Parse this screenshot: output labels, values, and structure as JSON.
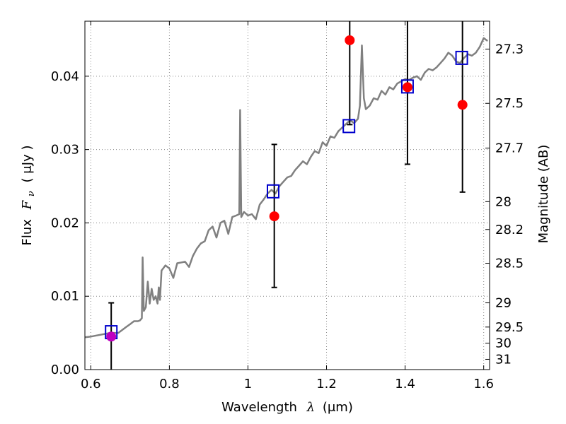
{
  "chart_data": {
    "type": "scatter",
    "title": "",
    "xlabel": {
      "prefix": "Wavelength",
      "symbol": "λ",
      "unit": "(μm)"
    },
    "ylabel": {
      "prefix": "Flux",
      "symbol": "F",
      "subscript": "ν",
      "unit": "( μJy )"
    },
    "y2label": "Magnitude (AB)",
    "xlim": [
      0.585,
      1.615
    ],
    "ylim": [
      0.0,
      0.0475
    ],
    "grid": true,
    "x_ticks": [
      0.6,
      0.8,
      1.0,
      1.2,
      1.4,
      1.6
    ],
    "x_tick_labels": [
      "0.6",
      "0.8",
      "1",
      "1.2",
      "1.4",
      "1.6"
    ],
    "y_ticks": [
      0.0,
      0.01,
      0.02,
      0.03,
      0.04
    ],
    "y_tick_labels": [
      "0.00",
      "0.01",
      "0.02",
      "0.03",
      "0.04"
    ],
    "y2_ticks": [
      {
        "label": "27.3",
        "flux": 0.0437
      },
      {
        "label": "27.5",
        "flux": 0.0363
      },
      {
        "label": "27.7",
        "flux": 0.0302
      },
      {
        "label": "28",
        "flux": 0.0229
      },
      {
        "label": "28.2",
        "flux": 0.0191
      },
      {
        "label": "28.5",
        "flux": 0.0145
      },
      {
        "label": "29",
        "flux": 0.0091
      },
      {
        "label": "29.5",
        "flux": 0.0058
      },
      {
        "label": "30",
        "flux": 0.0036
      },
      {
        "label": "31",
        "flux": 0.0014
      }
    ],
    "colors": {
      "model": "#808080",
      "observed": "#ff0000",
      "upper_limit": "#bf00bf",
      "synthetic": "#0000cc",
      "errorbar": "#000000",
      "grid": "#888888"
    },
    "series": [
      {
        "kind": "line",
        "points": [
          [
            0.585,
            0.0044
          ],
          [
            0.6,
            0.0045
          ],
          [
            0.62,
            0.0047
          ],
          [
            0.64,
            0.0049
          ],
          [
            0.65,
            0.005
          ],
          [
            0.67,
            0.005
          ],
          [
            0.69,
            0.0058
          ],
          [
            0.7,
            0.0062
          ],
          [
            0.71,
            0.0066
          ],
          [
            0.72,
            0.0066
          ],
          [
            0.725,
            0.0067
          ],
          [
            0.73,
            0.007
          ],
          [
            0.732,
            0.0153
          ],
          [
            0.735,
            0.008
          ],
          [
            0.74,
            0.0085
          ],
          [
            0.745,
            0.012
          ],
          [
            0.75,
            0.009
          ],
          [
            0.755,
            0.011
          ],
          [
            0.76,
            0.0095
          ],
          [
            0.765,
            0.01
          ],
          [
            0.77,
            0.009
          ],
          [
            0.773,
            0.0112
          ],
          [
            0.776,
            0.0095
          ],
          [
            0.78,
            0.0135
          ],
          [
            0.79,
            0.0142
          ],
          [
            0.8,
            0.0138
          ],
          [
            0.81,
            0.0125
          ],
          [
            0.82,
            0.0145
          ],
          [
            0.84,
            0.0147
          ],
          [
            0.85,
            0.014
          ],
          [
            0.86,
            0.0155
          ],
          [
            0.87,
            0.0165
          ],
          [
            0.88,
            0.0172
          ],
          [
            0.89,
            0.0175
          ],
          [
            0.9,
            0.019
          ],
          [
            0.91,
            0.0195
          ],
          [
            0.92,
            0.018
          ],
          [
            0.93,
            0.02
          ],
          [
            0.94,
            0.0203
          ],
          [
            0.95,
            0.0185
          ],
          [
            0.96,
            0.0208
          ],
          [
            0.97,
            0.021
          ],
          [
            0.978,
            0.0212
          ],
          [
            0.98,
            0.0354
          ],
          [
            0.983,
            0.0208
          ],
          [
            0.99,
            0.0215
          ],
          [
            1.0,
            0.021
          ],
          [
            1.01,
            0.0212
          ],
          [
            1.02,
            0.0205
          ],
          [
            1.03,
            0.0225
          ],
          [
            1.04,
            0.0232
          ],
          [
            1.05,
            0.024
          ],
          [
            1.06,
            0.0245
          ],
          [
            1.07,
            0.024
          ],
          [
            1.08,
            0.025
          ],
          [
            1.09,
            0.0256
          ],
          [
            1.1,
            0.0262
          ],
          [
            1.11,
            0.0264
          ],
          [
            1.12,
            0.0272
          ],
          [
            1.13,
            0.0278
          ],
          [
            1.14,
            0.0284
          ],
          [
            1.15,
            0.028
          ],
          [
            1.16,
            0.029
          ],
          [
            1.17,
            0.0298
          ],
          [
            1.18,
            0.0295
          ],
          [
            1.19,
            0.031
          ],
          [
            1.2,
            0.0305
          ],
          [
            1.21,
            0.0318
          ],
          [
            1.22,
            0.0316
          ],
          [
            1.23,
            0.0325
          ],
          [
            1.24,
            0.033
          ],
          [
            1.25,
            0.0335
          ],
          [
            1.26,
            0.034
          ],
          [
            1.27,
            0.0336
          ],
          [
            1.28,
            0.0342
          ],
          [
            1.285,
            0.036
          ],
          [
            1.29,
            0.0442
          ],
          [
            1.295,
            0.037
          ],
          [
            1.3,
            0.0355
          ],
          [
            1.31,
            0.036
          ],
          [
            1.32,
            0.037
          ],
          [
            1.33,
            0.0368
          ],
          [
            1.34,
            0.038
          ],
          [
            1.35,
            0.0375
          ],
          [
            1.36,
            0.0385
          ],
          [
            1.37,
            0.0382
          ],
          [
            1.38,
            0.039
          ],
          [
            1.39,
            0.0393
          ],
          [
            1.4,
            0.0396
          ],
          [
            1.41,
            0.0395
          ],
          [
            1.42,
            0.0398
          ],
          [
            1.43,
            0.04
          ],
          [
            1.44,
            0.0395
          ],
          [
            1.45,
            0.0405
          ],
          [
            1.46,
            0.041
          ],
          [
            1.47,
            0.0408
          ],
          [
            1.48,
            0.0412
          ],
          [
            1.49,
            0.0418
          ],
          [
            1.5,
            0.0424
          ],
          [
            1.51,
            0.0432
          ],
          [
            1.52,
            0.0428
          ],
          [
            1.53,
            0.042
          ],
          [
            1.54,
            0.0418
          ],
          [
            1.55,
            0.0425
          ],
          [
            1.56,
            0.043
          ],
          [
            1.57,
            0.0428
          ],
          [
            1.58,
            0.0432
          ],
          [
            1.59,
            0.044
          ],
          [
            1.6,
            0.0452
          ],
          [
            1.61,
            0.0448
          ]
        ]
      },
      {
        "kind": "synthetic",
        "points": [
          {
            "x": 0.652,
            "y": 0.0051
          },
          {
            "x": 1.064,
            "y": 0.0243
          },
          {
            "x": 1.257,
            "y": 0.0332
          },
          {
            "x": 1.406,
            "y": 0.0386
          },
          {
            "x": 1.544,
            "y": 0.0425
          }
        ]
      },
      {
        "kind": "observed",
        "points": [
          {
            "x": 0.652,
            "y": 0.0045,
            "yerr_low": 0.005,
            "yerr_high": 0.0046,
            "upper_limit": true
          },
          {
            "x": 1.067,
            "y": 0.0209,
            "yerr_low": 0.0097,
            "yerr_high": 0.0098
          },
          {
            "x": 1.259,
            "y": 0.0449,
            "yerr_low": 0.0115,
            "yerr_high": 0.011
          },
          {
            "x": 1.406,
            "y": 0.0385,
            "yerr_low": 0.0105,
            "yerr_high": 0.0105
          },
          {
            "x": 1.546,
            "y": 0.0361,
            "yerr_low": 0.0119,
            "yerr_high": 0.0119
          }
        ]
      }
    ]
  }
}
